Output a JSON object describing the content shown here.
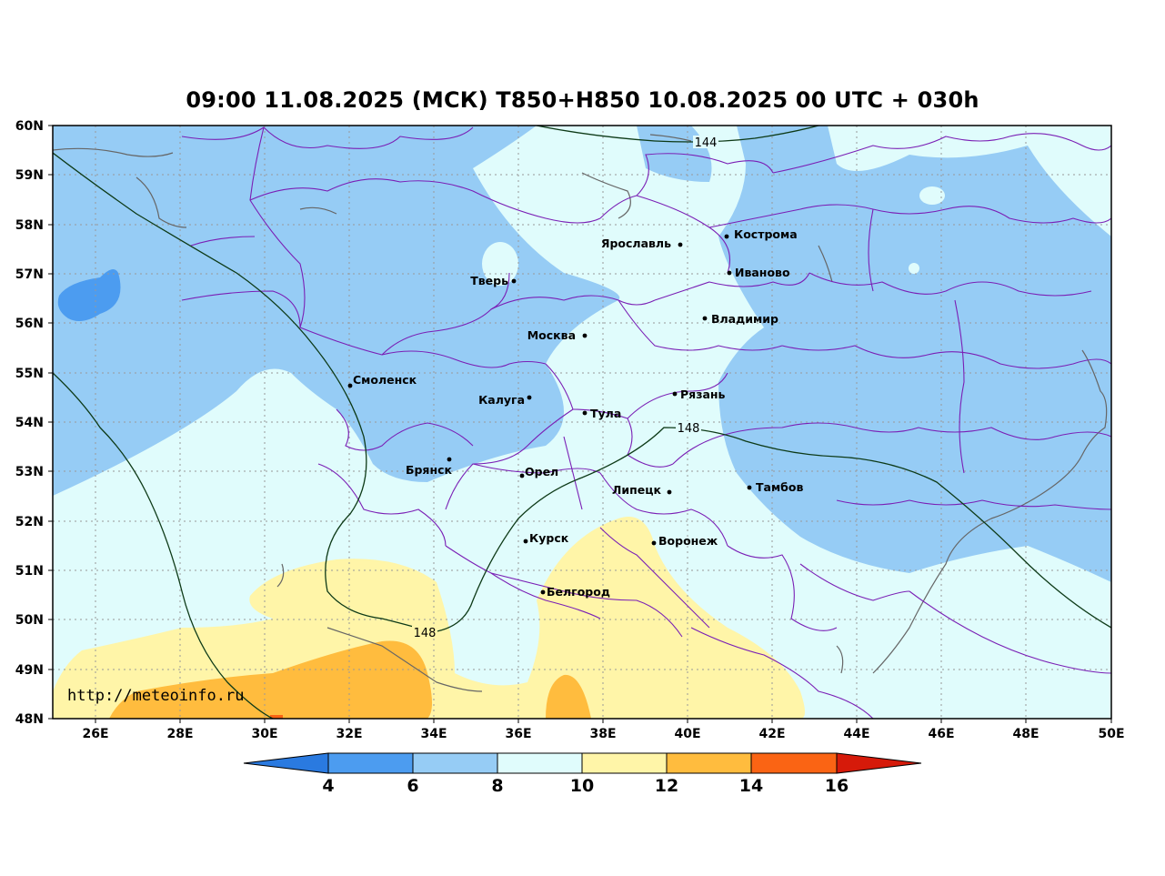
{
  "title": "09:00 11.08.2025 (МСК) T850+H850 10.08.2025 00 UTC + 030h",
  "watermark": "http://meteoinfo.ru",
  "axes": {
    "lat_labels": [
      "60N",
      "59N",
      "58N",
      "57N",
      "56N",
      "55N",
      "54N",
      "53N",
      "52N",
      "51N",
      "50N",
      "49N",
      "48N"
    ],
    "lon_labels": [
      "26E",
      "28E",
      "30E",
      "32E",
      "34E",
      "36E",
      "38E",
      "40E",
      "42E",
      "44E",
      "46E",
      "48E",
      "50E"
    ]
  },
  "contour_labels": [
    "144",
    "148",
    "148"
  ],
  "cities": [
    {
      "name": "Кострома"
    },
    {
      "name": "Ярославль"
    },
    {
      "name": "Иваново"
    },
    {
      "name": "Тверь"
    },
    {
      "name": "Владимир"
    },
    {
      "name": "Москва"
    },
    {
      "name": "Смоленск"
    },
    {
      "name": "Калуга"
    },
    {
      "name": "Рязань"
    },
    {
      "name": "Тула"
    },
    {
      "name": "Брянск"
    },
    {
      "name": "Орел"
    },
    {
      "name": "Липецк"
    },
    {
      "name": "Тамбов"
    },
    {
      "name": "Курск"
    },
    {
      "name": "Воронеж"
    },
    {
      "name": "Белгород"
    }
  ],
  "colorbar": {
    "labels": [
      "4",
      "6",
      "8",
      "10",
      "12",
      "14",
      "16"
    ],
    "colors": [
      "#2a7ae0",
      "#4c9cf0",
      "#96ccf5",
      "#e0fcfc",
      "#fff5a8",
      "#ffbc3e",
      "#fa6414",
      "#d61a0a"
    ]
  }
}
